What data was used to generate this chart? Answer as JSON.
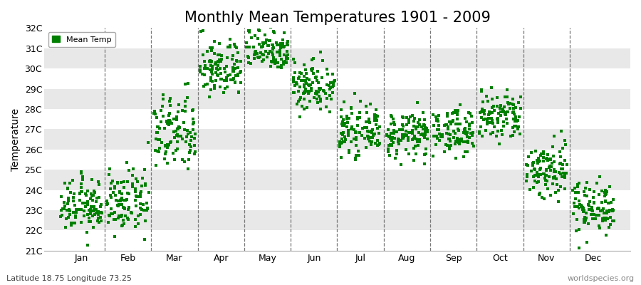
{
  "title": "Monthly Mean Temperatures 1901 - 2009",
  "ylabel": "Temperature",
  "xlabel_bottom": "Latitude 18.75 Longitude 73.25",
  "watermark": "worldspecies.org",
  "legend_label": "Mean Temp",
  "dot_color": "#008000",
  "bg_color": "#ffffff",
  "stripe_color": "#e8e8e8",
  "ylim": [
    21,
    32
  ],
  "yticks": [
    21,
    22,
    23,
    24,
    25,
    26,
    27,
    28,
    29,
    30,
    31,
    32
  ],
  "ytick_labels": [
    "21C",
    "22C",
    "23C",
    "24C",
    "25C",
    "26C",
    "27C",
    "28C",
    "29C",
    "30C",
    "31C",
    "32C"
  ],
  "months": [
    "Jan",
    "Feb",
    "Mar",
    "Apr",
    "May",
    "Jun",
    "Jul",
    "Aug",
    "Sep",
    "Oct",
    "Nov",
    "Dec"
  ],
  "monthly_means": [
    23.2,
    23.4,
    26.8,
    30.0,
    31.0,
    29.2,
    26.9,
    26.7,
    26.9,
    27.6,
    25.0,
    23.2
  ],
  "monthly_stds": [
    0.65,
    0.75,
    0.95,
    0.7,
    0.55,
    0.65,
    0.55,
    0.55,
    0.55,
    0.65,
    0.75,
    0.65
  ],
  "n_years": 109,
  "title_fontsize": 15,
  "axis_label_fontsize": 10,
  "tick_fontsize": 9,
  "dot_size": 5,
  "seed": 12345
}
